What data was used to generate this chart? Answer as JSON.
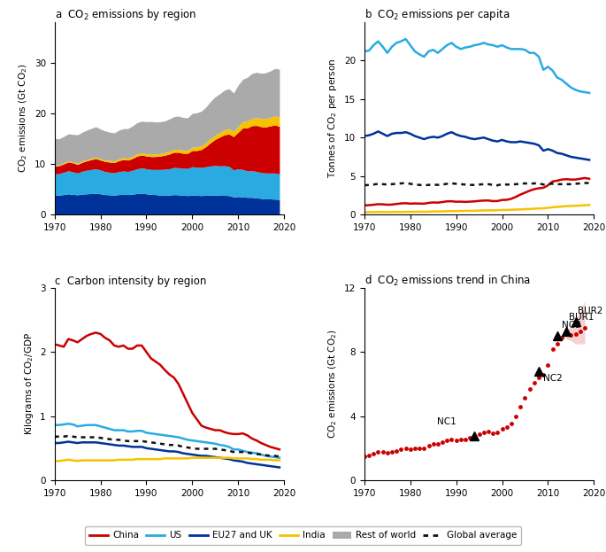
{
  "years": [
    1970,
    1971,
    1972,
    1973,
    1974,
    1975,
    1976,
    1977,
    1978,
    1979,
    1980,
    1981,
    1982,
    1983,
    1984,
    1985,
    1986,
    1987,
    1988,
    1989,
    1990,
    1991,
    1992,
    1993,
    1994,
    1995,
    1996,
    1997,
    1998,
    1999,
    2000,
    2001,
    2002,
    2003,
    2004,
    2005,
    2006,
    2007,
    2008,
    2009,
    2010,
    2011,
    2012,
    2013,
    2014,
    2015,
    2016,
    2017,
    2018,
    2019
  ],
  "panel_a": {
    "EU27_UK": [
      3.8,
      3.85,
      3.95,
      4.1,
      4.0,
      3.9,
      4.05,
      4.1,
      4.15,
      4.2,
      4.1,
      3.95,
      3.9,
      3.85,
      3.95,
      4.0,
      3.95,
      4.05,
      4.15,
      4.2,
      4.1,
      4.0,
      3.95,
      3.85,
      3.8,
      3.85,
      3.95,
      3.9,
      3.8,
      3.75,
      3.85,
      3.8,
      3.75,
      3.8,
      3.85,
      3.85,
      3.8,
      3.8,
      3.75,
      3.5,
      3.55,
      3.5,
      3.4,
      3.4,
      3.3,
      3.2,
      3.1,
      3.1,
      3.05,
      3.0
    ],
    "US": [
      4.2,
      4.25,
      4.4,
      4.55,
      4.45,
      4.3,
      4.5,
      4.65,
      4.75,
      4.85,
      4.7,
      4.55,
      4.45,
      4.4,
      4.55,
      4.6,
      4.55,
      4.7,
      4.9,
      5.0,
      4.95,
      4.9,
      4.95,
      5.05,
      5.15,
      5.2,
      5.35,
      5.35,
      5.35,
      5.35,
      5.6,
      5.55,
      5.55,
      5.65,
      5.75,
      5.85,
      5.8,
      5.85,
      5.75,
      5.3,
      5.5,
      5.4,
      5.2,
      5.25,
      5.2,
      5.1,
      5.1,
      5.1,
      5.15,
      5.0
    ],
    "China": [
      1.5,
      1.55,
      1.65,
      1.75,
      1.75,
      1.7,
      1.75,
      1.85,
      1.95,
      2.0,
      1.95,
      2.0,
      2.0,
      2.0,
      2.15,
      2.25,
      2.25,
      2.35,
      2.5,
      2.55,
      2.5,
      2.55,
      2.55,
      2.65,
      2.75,
      2.9,
      3.0,
      3.05,
      2.95,
      3.0,
      3.2,
      3.3,
      3.55,
      4.0,
      4.6,
      5.15,
      5.7,
      6.1,
      6.4,
      6.6,
      7.2,
      8.2,
      8.5,
      8.9,
      9.1,
      9.05,
      9.1,
      9.3,
      9.5,
      9.4
    ],
    "India": [
      0.2,
      0.21,
      0.22,
      0.23,
      0.24,
      0.24,
      0.25,
      0.26,
      0.27,
      0.28,
      0.3,
      0.31,
      0.32,
      0.33,
      0.35,
      0.37,
      0.38,
      0.4,
      0.42,
      0.44,
      0.45,
      0.47,
      0.49,
      0.51,
      0.53,
      0.56,
      0.58,
      0.6,
      0.62,
      0.64,
      0.67,
      0.7,
      0.73,
      0.76,
      0.8,
      0.85,
      0.9,
      0.95,
      1.02,
      1.05,
      1.15,
      1.25,
      1.35,
      1.45,
      1.55,
      1.6,
      1.65,
      1.7,
      1.8,
      1.85
    ],
    "Rest_of_world": [
      5.3,
      5.1,
      5.2,
      5.3,
      5.4,
      5.6,
      5.7,
      5.8,
      5.9,
      6.0,
      5.85,
      5.7,
      5.6,
      5.55,
      5.65,
      5.75,
      5.85,
      6.0,
      6.2,
      6.25,
      6.35,
      6.45,
      6.35,
      6.25,
      6.25,
      6.35,
      6.45,
      6.55,
      6.45,
      6.35,
      6.65,
      6.75,
      6.85,
      7.05,
      7.35,
      7.55,
      7.65,
      7.85,
      7.95,
      7.55,
      8.15,
      8.35,
      8.65,
      8.85,
      8.95,
      8.95,
      9.05,
      9.15,
      9.35,
      9.45
    ]
  },
  "panel_b": {
    "US": [
      21.2,
      21.3,
      22.0,
      22.5,
      21.8,
      21.0,
      21.8,
      22.3,
      22.5,
      22.8,
      22.0,
      21.2,
      20.8,
      20.5,
      21.2,
      21.4,
      21.0,
      21.5,
      22.0,
      22.3,
      21.8,
      21.5,
      21.7,
      21.8,
      22.0,
      22.1,
      22.3,
      22.1,
      22.0,
      21.8,
      22.0,
      21.7,
      21.5,
      21.5,
      21.5,
      21.4,
      21.0,
      21.0,
      20.5,
      18.8,
      19.2,
      18.7,
      17.8,
      17.5,
      17.0,
      16.5,
      16.2,
      16.0,
      15.9,
      15.8
    ],
    "EU27_UK": [
      10.2,
      10.3,
      10.5,
      10.8,
      10.5,
      10.2,
      10.5,
      10.6,
      10.6,
      10.7,
      10.5,
      10.2,
      10.0,
      9.8,
      10.0,
      10.1,
      10.0,
      10.2,
      10.5,
      10.7,
      10.4,
      10.2,
      10.1,
      9.9,
      9.8,
      9.9,
      10.0,
      9.8,
      9.6,
      9.5,
      9.7,
      9.5,
      9.4,
      9.4,
      9.5,
      9.4,
      9.3,
      9.2,
      9.0,
      8.3,
      8.5,
      8.3,
      8.0,
      7.9,
      7.7,
      7.5,
      7.4,
      7.3,
      7.2,
      7.1
    ],
    "Global_avg": [
      3.8,
      3.85,
      3.9,
      4.0,
      3.95,
      3.9,
      3.95,
      4.0,
      4.05,
      4.1,
      4.0,
      3.9,
      3.85,
      3.8,
      3.85,
      3.9,
      3.85,
      3.9,
      4.0,
      4.05,
      4.0,
      3.95,
      3.9,
      3.85,
      3.85,
      3.9,
      3.95,
      3.95,
      3.85,
      3.8,
      3.95,
      3.9,
      3.9,
      3.95,
      4.0,
      4.05,
      4.0,
      4.05,
      4.05,
      3.9,
      4.0,
      4.0,
      3.95,
      3.95,
      3.95,
      3.95,
      4.0,
      4.05,
      4.1,
      4.1
    ],
    "China": [
      1.2,
      1.22,
      1.28,
      1.35,
      1.33,
      1.28,
      1.3,
      1.38,
      1.45,
      1.48,
      1.42,
      1.45,
      1.43,
      1.42,
      1.52,
      1.58,
      1.55,
      1.63,
      1.72,
      1.73,
      1.67,
      1.68,
      1.65,
      1.68,
      1.72,
      1.78,
      1.82,
      1.83,
      1.75,
      1.76,
      1.9,
      1.92,
      2.05,
      2.3,
      2.6,
      2.85,
      3.1,
      3.3,
      3.42,
      3.48,
      3.8,
      4.3,
      4.4,
      4.55,
      4.6,
      4.55,
      4.55,
      4.65,
      4.75,
      4.65
    ],
    "India": [
      0.3,
      0.31,
      0.32,
      0.33,
      0.33,
      0.32,
      0.33,
      0.34,
      0.34,
      0.35,
      0.36,
      0.36,
      0.37,
      0.37,
      0.38,
      0.4,
      0.41,
      0.42,
      0.44,
      0.45,
      0.46,
      0.47,
      0.48,
      0.49,
      0.5,
      0.52,
      0.54,
      0.55,
      0.56,
      0.57,
      0.59,
      0.61,
      0.63,
      0.65,
      0.67,
      0.7,
      0.73,
      0.76,
      0.8,
      0.81,
      0.88,
      0.95,
      1.0,
      1.05,
      1.1,
      1.12,
      1.15,
      1.18,
      1.22,
      1.25
    ]
  },
  "panel_c": {
    "China": [
      2.12,
      2.1,
      2.08,
      2.2,
      2.18,
      2.15,
      2.2,
      2.25,
      2.28,
      2.3,
      2.28,
      2.22,
      2.18,
      2.1,
      2.08,
      2.1,
      2.05,
      2.05,
      2.1,
      2.1,
      2.0,
      1.9,
      1.85,
      1.8,
      1.72,
      1.65,
      1.6,
      1.5,
      1.35,
      1.2,
      1.05,
      0.95,
      0.85,
      0.82,
      0.8,
      0.78,
      0.78,
      0.75,
      0.73,
      0.72,
      0.72,
      0.73,
      0.7,
      0.65,
      0.62,
      0.58,
      0.55,
      0.52,
      0.5,
      0.48
    ],
    "US": [
      0.86,
      0.86,
      0.87,
      0.88,
      0.87,
      0.84,
      0.85,
      0.86,
      0.86,
      0.86,
      0.84,
      0.82,
      0.8,
      0.78,
      0.78,
      0.78,
      0.76,
      0.76,
      0.77,
      0.77,
      0.74,
      0.73,
      0.72,
      0.71,
      0.7,
      0.69,
      0.68,
      0.67,
      0.65,
      0.63,
      0.62,
      0.61,
      0.6,
      0.59,
      0.58,
      0.57,
      0.55,
      0.54,
      0.52,
      0.48,
      0.48,
      0.46,
      0.44,
      0.43,
      0.42,
      0.4,
      0.38,
      0.37,
      0.36,
      0.35
    ],
    "EU27_UK": [
      0.58,
      0.58,
      0.59,
      0.6,
      0.59,
      0.58,
      0.59,
      0.59,
      0.59,
      0.59,
      0.58,
      0.57,
      0.56,
      0.55,
      0.54,
      0.54,
      0.53,
      0.52,
      0.52,
      0.52,
      0.5,
      0.49,
      0.48,
      0.47,
      0.46,
      0.45,
      0.45,
      0.44,
      0.42,
      0.41,
      0.4,
      0.39,
      0.38,
      0.38,
      0.37,
      0.36,
      0.35,
      0.34,
      0.33,
      0.31,
      0.3,
      0.29,
      0.27,
      0.26,
      0.25,
      0.24,
      0.23,
      0.22,
      0.21,
      0.2
    ],
    "India": [
      0.3,
      0.3,
      0.31,
      0.32,
      0.31,
      0.3,
      0.31,
      0.31,
      0.31,
      0.31,
      0.31,
      0.31,
      0.31,
      0.31,
      0.32,
      0.32,
      0.32,
      0.32,
      0.33,
      0.33,
      0.33,
      0.33,
      0.33,
      0.33,
      0.34,
      0.34,
      0.34,
      0.34,
      0.34,
      0.34,
      0.35,
      0.35,
      0.35,
      0.35,
      0.35,
      0.35,
      0.35,
      0.35,
      0.35,
      0.34,
      0.34,
      0.34,
      0.34,
      0.33,
      0.33,
      0.32,
      0.32,
      0.32,
      0.31,
      0.31
    ],
    "Global_avg": [
      0.68,
      0.68,
      0.68,
      0.69,
      0.68,
      0.67,
      0.67,
      0.67,
      0.67,
      0.67,
      0.66,
      0.65,
      0.64,
      0.63,
      0.63,
      0.62,
      0.61,
      0.61,
      0.61,
      0.61,
      0.6,
      0.59,
      0.58,
      0.57,
      0.56,
      0.55,
      0.55,
      0.54,
      0.52,
      0.51,
      0.5,
      0.49,
      0.49,
      0.49,
      0.49,
      0.49,
      0.48,
      0.47,
      0.46,
      0.44,
      0.44,
      0.44,
      0.43,
      0.42,
      0.41,
      0.4,
      0.39,
      0.38,
      0.38,
      0.37
    ]
  },
  "panel_d": {
    "years": [
      1970,
      1971,
      1972,
      1973,
      1974,
      1975,
      1976,
      1977,
      1978,
      1979,
      1980,
      1981,
      1982,
      1983,
      1984,
      1985,
      1986,
      1987,
      1988,
      1989,
      1990,
      1991,
      1992,
      1993,
      1994,
      1995,
      1996,
      1997,
      1998,
      1999,
      2000,
      2001,
      2002,
      2003,
      2004,
      2005,
      2006,
      2007,
      2008,
      2009,
      2010,
      2011,
      2012,
      2013,
      2014,
      2015,
      2016,
      2017,
      2018
    ],
    "China_emissions": [
      1.5,
      1.55,
      1.65,
      1.75,
      1.75,
      1.7,
      1.75,
      1.85,
      1.95,
      2.0,
      1.95,
      2.0,
      2.0,
      2.0,
      2.15,
      2.25,
      2.25,
      2.35,
      2.5,
      2.55,
      2.5,
      2.55,
      2.55,
      2.65,
      2.75,
      2.9,
      3.0,
      3.05,
      2.95,
      3.0,
      3.2,
      3.3,
      3.55,
      4.0,
      4.6,
      5.15,
      5.7,
      6.1,
      6.4,
      6.6,
      7.2,
      8.2,
      8.5,
      8.9,
      9.1,
      9.05,
      9.1,
      9.3,
      9.5
    ],
    "unc_years": [
      2014,
      2015,
      2016,
      2017,
      2018
    ],
    "unc_upper": [
      9.5,
      9.5,
      10.0,
      10.5,
      11.2
    ],
    "unc_lower": [
      8.8,
      8.7,
      8.5,
      8.5,
      8.5
    ],
    "NC1_year": 1994,
    "NC1_value": 2.75,
    "NC2_year": 2008,
    "NC2_value": 6.8,
    "NC3_year": 2012,
    "NC3_value": 9.0,
    "BUR1_year": 2014,
    "BUR1_value": 9.3,
    "BUR2_year": 2016,
    "BUR2_value": 9.9
  },
  "colors": {
    "China": "#cc0000",
    "US": "#29abe2",
    "EU27_UK": "#003399",
    "India": "#f5c300",
    "Rest_of_world": "#aaaaaa",
    "Global_avg": "#111111"
  }
}
